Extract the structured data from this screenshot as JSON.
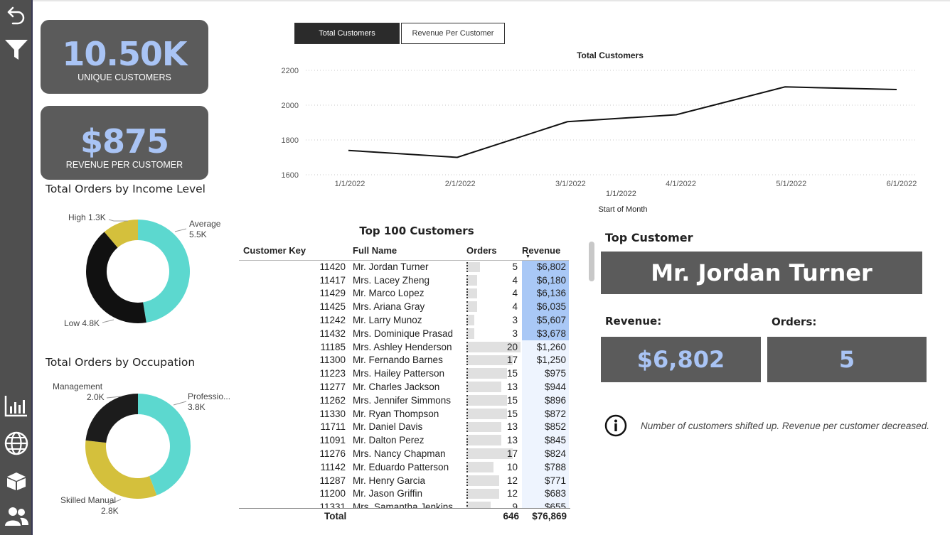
{
  "sidebar": {
    "icons": [
      "back-arrow-icon",
      "filter-icon",
      "bar-chart-icon",
      "globe-icon",
      "box-icon",
      "users-icon"
    ]
  },
  "kpis": {
    "unique_customers": {
      "value": "10.50K",
      "label": "UNIQUE CUSTOMERS"
    },
    "revenue_per_customer": {
      "value": "$875",
      "label": "REVENUE PER CUSTOMER"
    }
  },
  "tabs": [
    {
      "label": "Total Customers",
      "active": true
    },
    {
      "label": "Revenue Per Customer",
      "active": false
    }
  ],
  "income_donut": {
    "title": "Total Orders by Income Level",
    "labels": {
      "high": {
        "name": "High",
        "value": "1.3K"
      },
      "average": {
        "name": "Average",
        "value": "5.5K"
      },
      "low": {
        "name": "Low",
        "value": "4.8K"
      }
    },
    "slices": [
      {
        "name": "Average",
        "value": 5.5,
        "color": "#5cd8cf"
      },
      {
        "name": "Low",
        "value": 4.8,
        "color": "#111111"
      },
      {
        "name": "High",
        "value": 1.3,
        "color": "#d4c03c"
      }
    ]
  },
  "occupation_donut": {
    "title": "Total Orders by Occupation",
    "labels": {
      "management": {
        "name": "Management",
        "value": "2.0K"
      },
      "professional": {
        "name": "Professio...",
        "value": "3.8K"
      },
      "skilled": {
        "name": "Skilled Manual",
        "value": "2.8K"
      }
    },
    "slices": [
      {
        "name": "Professional",
        "value": 3.8,
        "color": "#5cd8cf"
      },
      {
        "name": "Skilled Manual",
        "value": 2.8,
        "color": "#d4c03c"
      },
      {
        "name": "Management",
        "value": 2.0,
        "color": "#1c1c1c"
      }
    ]
  },
  "line_chart": {
    "title": "Total Customers",
    "xlabel_top": "1/1/2022",
    "xlabel": "Start of Month"
  },
  "chart_data": {
    "type": "line",
    "title": "Total Customers",
    "xlabel": "Start of Month",
    "x": [
      "1/1/2022",
      "2/1/2022",
      "3/1/2022",
      "4/1/2022",
      "5/1/2022",
      "6/1/2022"
    ],
    "y": [
      1740,
      1700,
      1905,
      1945,
      2105,
      2090
    ],
    "yticks": [
      1600,
      1800,
      2000,
      2200
    ],
    "ylim": [
      1600,
      2200
    ],
    "grid": true,
    "color": "#111111"
  },
  "table": {
    "title": "Top 100 Customers",
    "headers": {
      "key": "Customer Key",
      "name": "Full Name",
      "orders": "Orders",
      "revenue": "Revenue"
    },
    "rows": [
      {
        "key": "11420",
        "name": "Mr. Jordan Turner",
        "orders": 5,
        "revenue": "$6,802",
        "highlight": true
      },
      {
        "key": "11417",
        "name": "Mrs. Lacey Zheng",
        "orders": 4,
        "revenue": "$6,180",
        "highlight": true
      },
      {
        "key": "11429",
        "name": "Mr. Marco Lopez",
        "orders": 4,
        "revenue": "$6,136",
        "highlight": true
      },
      {
        "key": "11425",
        "name": "Mrs. Ariana Gray",
        "orders": 4,
        "revenue": "$6,035",
        "highlight": true
      },
      {
        "key": "11242",
        "name": "Mr. Larry Munoz",
        "orders": 3,
        "revenue": "$5,607",
        "highlight": true
      },
      {
        "key": "11432",
        "name": "Mrs. Dominique Prasad",
        "orders": 3,
        "revenue": "$3,678",
        "highlight": true
      },
      {
        "key": "11185",
        "name": "Mrs. Ashley Henderson",
        "orders": 20,
        "revenue": "$1,260",
        "highlight": false
      },
      {
        "key": "11300",
        "name": "Mr. Fernando Barnes",
        "orders": 17,
        "revenue": "$1,250",
        "highlight": false
      },
      {
        "key": "11223",
        "name": "Mrs. Hailey Patterson",
        "orders": 15,
        "revenue": "$975",
        "highlight": false
      },
      {
        "key": "11277",
        "name": "Mr. Charles Jackson",
        "orders": 13,
        "revenue": "$944",
        "highlight": false
      },
      {
        "key": "11262",
        "name": "Mrs. Jennifer Simmons",
        "orders": 15,
        "revenue": "$896",
        "highlight": false
      },
      {
        "key": "11330",
        "name": "Mr. Ryan Thompson",
        "orders": 15,
        "revenue": "$872",
        "highlight": false
      },
      {
        "key": "11711",
        "name": "Mr. Daniel Davis",
        "orders": 13,
        "revenue": "$852",
        "highlight": false
      },
      {
        "key": "11091",
        "name": "Mr. Dalton Perez",
        "orders": 13,
        "revenue": "$845",
        "highlight": false
      },
      {
        "key": "11276",
        "name": "Mrs. Nancy Chapman",
        "orders": 17,
        "revenue": "$824",
        "highlight": false
      },
      {
        "key": "11142",
        "name": "Mr. Eduardo Patterson",
        "orders": 10,
        "revenue": "$788",
        "highlight": false
      },
      {
        "key": "11287",
        "name": "Mr. Henry Garcia",
        "orders": 12,
        "revenue": "$771",
        "highlight": false
      },
      {
        "key": "11200",
        "name": "Mr. Jason Griffin",
        "orders": 12,
        "revenue": "$683",
        "highlight": false
      },
      {
        "key": "11331",
        "name": "Mrs. Samantha Jenkins",
        "orders": 9,
        "revenue": "$655",
        "highlight": false
      }
    ],
    "totals": {
      "label": "Total",
      "orders": "646",
      "revenue": "$76,869"
    }
  },
  "top_customer": {
    "title": "Top Customer",
    "name": "Mr. Jordan Turner",
    "revenue_label": "Revenue:",
    "revenue": "$6,802",
    "orders_label": "Orders:",
    "orders": "5"
  },
  "insight": {
    "text": "Number of customers shifted up. Revenue per customer decreased."
  }
}
